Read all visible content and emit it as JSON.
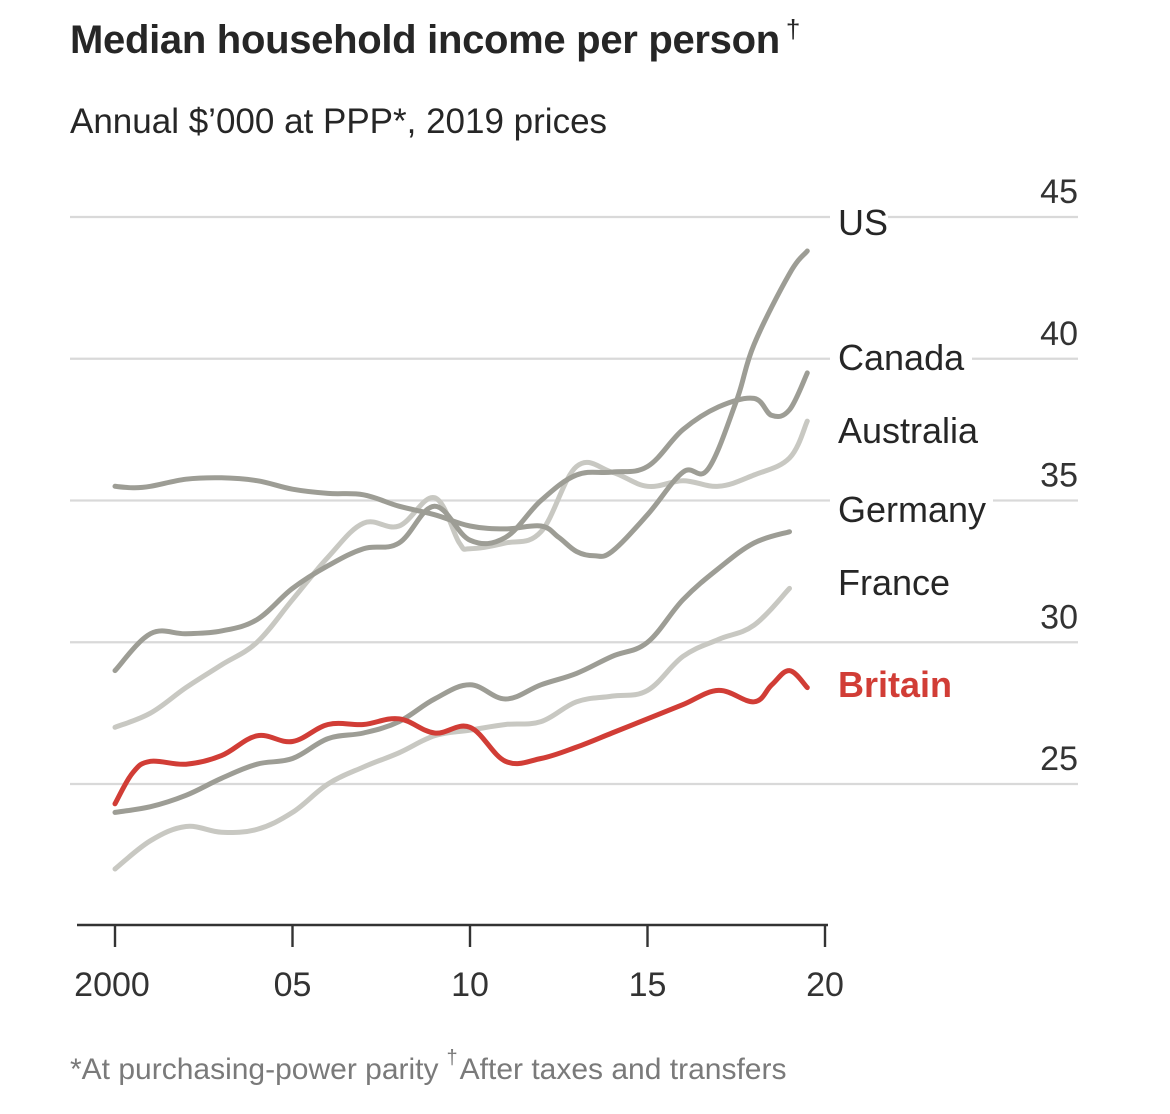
{
  "chart_data": {
    "type": "line",
    "title": "Median household income per person",
    "title_marker": "†",
    "subtitle": "Annual $’000 at PPP*, 2019 prices",
    "footnote_ppp": "*At purchasing-power parity",
    "footnote_marker": "†",
    "footnote_taxes": "After taxes and transfers",
    "xlabel": "",
    "ylabel": "",
    "xlim": [
      2000,
      2020
    ],
    "ylim": [
      20,
      45
    ],
    "y_ticks": [
      25,
      30,
      35,
      40,
      45
    ],
    "y_tick_labels": [
      "25",
      "30",
      "35",
      "40",
      "45"
    ],
    "x_ticks": [
      2000,
      2005,
      2010,
      2015,
      2020
    ],
    "x_tick_labels": [
      "2000",
      "05",
      "10",
      "15",
      "20"
    ],
    "grid": true,
    "colors": {
      "gridline": "#d9d9d9",
      "axis": "#333333",
      "tick_label": "#333333",
      "series_label": "#262626",
      "britain": "#d13d36"
    },
    "series": [
      {
        "name": "US",
        "color": "#9d9d95",
        "points": [
          [
            2000,
            35.5
          ],
          [
            2000.5,
            35.45
          ],
          [
            2001,
            35.5
          ],
          [
            2002,
            35.75
          ],
          [
            2003,
            35.8
          ],
          [
            2004,
            35.7
          ],
          [
            2005,
            35.4
          ],
          [
            2006,
            35.25
          ],
          [
            2007,
            35.2
          ],
          [
            2008,
            34.8
          ],
          [
            2009,
            34.5
          ],
          [
            2010,
            34.1
          ],
          [
            2011,
            34.0
          ],
          [
            2012,
            34.1
          ],
          [
            2012.5,
            33.7
          ],
          [
            2013,
            33.2
          ],
          [
            2013.5,
            33.05
          ],
          [
            2014,
            33.2
          ],
          [
            2015,
            34.5
          ],
          [
            2016,
            36.0
          ],
          [
            2016.7,
            36.1
          ],
          [
            2017.5,
            38.5
          ],
          [
            2018,
            40.5
          ],
          [
            2019,
            43.0
          ],
          [
            2019.5,
            43.8
          ]
        ]
      },
      {
        "name": "Canada",
        "color": "#9d9d95",
        "points": [
          [
            2000,
            29.0
          ],
          [
            2001,
            30.3
          ],
          [
            2002,
            30.3
          ],
          [
            2003,
            30.4
          ],
          [
            2004,
            30.8
          ],
          [
            2005,
            31.9
          ],
          [
            2006,
            32.7
          ],
          [
            2007,
            33.3
          ],
          [
            2008,
            33.5
          ],
          [
            2009,
            34.8
          ],
          [
            2010,
            33.6
          ],
          [
            2011,
            33.7
          ],
          [
            2012,
            35.0
          ],
          [
            2013,
            35.9
          ],
          [
            2014,
            36.0
          ],
          [
            2015,
            36.2
          ],
          [
            2016,
            37.5
          ],
          [
            2017,
            38.3
          ],
          [
            2018,
            38.6
          ],
          [
            2018.5,
            38.0
          ],
          [
            2019,
            38.2
          ],
          [
            2019.5,
            39.5
          ]
        ]
      },
      {
        "name": "Australia",
        "color": "#c8c8c2",
        "points": [
          [
            2000,
            27.0
          ],
          [
            2001,
            27.5
          ],
          [
            2002,
            28.4
          ],
          [
            2003,
            29.2
          ],
          [
            2004,
            30.0
          ],
          [
            2005,
            31.5
          ],
          [
            2006,
            33.0
          ],
          [
            2007,
            34.2
          ],
          [
            2008,
            34.1
          ],
          [
            2009,
            35.1
          ],
          [
            2009.7,
            33.5
          ],
          [
            2010,
            33.3
          ],
          [
            2011,
            33.5
          ],
          [
            2012,
            33.9
          ],
          [
            2013,
            36.2
          ],
          [
            2014,
            36.0
          ],
          [
            2015,
            35.5
          ],
          [
            2016,
            35.7
          ],
          [
            2017,
            35.5
          ],
          [
            2018,
            35.9
          ],
          [
            2019,
            36.5
          ],
          [
            2019.5,
            37.8
          ]
        ]
      },
      {
        "name": "Germany",
        "color": "#9d9d95",
        "points": [
          [
            2000,
            24.0
          ],
          [
            2001,
            24.2
          ],
          [
            2002,
            24.6
          ],
          [
            2003,
            25.2
          ],
          [
            2004,
            25.7
          ],
          [
            2005,
            25.9
          ],
          [
            2006,
            26.6
          ],
          [
            2007,
            26.8
          ],
          [
            2008,
            27.2
          ],
          [
            2009,
            28.0
          ],
          [
            2010,
            28.5
          ],
          [
            2011,
            28.0
          ],
          [
            2012,
            28.5
          ],
          [
            2013,
            28.9
          ],
          [
            2014,
            29.5
          ],
          [
            2015,
            30.0
          ],
          [
            2016,
            31.5
          ],
          [
            2017,
            32.6
          ],
          [
            2018,
            33.5
          ],
          [
            2019,
            33.9
          ]
        ]
      },
      {
        "name": "France",
        "color": "#c8c8c2",
        "points": [
          [
            2000,
            22.0
          ],
          [
            2001,
            23.0
          ],
          [
            2002,
            23.5
          ],
          [
            2003,
            23.3
          ],
          [
            2004,
            23.4
          ],
          [
            2005,
            24.0
          ],
          [
            2006,
            25.0
          ],
          [
            2007,
            25.6
          ],
          [
            2008,
            26.1
          ],
          [
            2009,
            26.7
          ],
          [
            2010,
            26.9
          ],
          [
            2011,
            27.1
          ],
          [
            2012,
            27.2
          ],
          [
            2013,
            27.9
          ],
          [
            2014,
            28.1
          ],
          [
            2015,
            28.3
          ],
          [
            2016,
            29.5
          ],
          [
            2017,
            30.1
          ],
          [
            2018,
            30.6
          ],
          [
            2019,
            31.9
          ]
        ]
      },
      {
        "name": "Britain",
        "color": "#d13d36",
        "points": [
          [
            2000,
            24.3
          ],
          [
            2000.5,
            25.4
          ],
          [
            2001,
            25.8
          ],
          [
            2002,
            25.7
          ],
          [
            2003,
            26.0
          ],
          [
            2004,
            26.7
          ],
          [
            2005,
            26.5
          ],
          [
            2006,
            27.1
          ],
          [
            2007,
            27.1
          ],
          [
            2008,
            27.3
          ],
          [
            2009,
            26.8
          ],
          [
            2010,
            27.0
          ],
          [
            2011,
            25.8
          ],
          [
            2012,
            25.9
          ],
          [
            2013,
            26.3
          ],
          [
            2014,
            26.8
          ],
          [
            2015,
            27.3
          ],
          [
            2016,
            27.8
          ],
          [
            2017,
            28.3
          ],
          [
            2018,
            27.9
          ],
          [
            2018.5,
            28.5
          ],
          [
            2019,
            29.0
          ],
          [
            2019.5,
            28.4
          ]
        ]
      }
    ]
  }
}
